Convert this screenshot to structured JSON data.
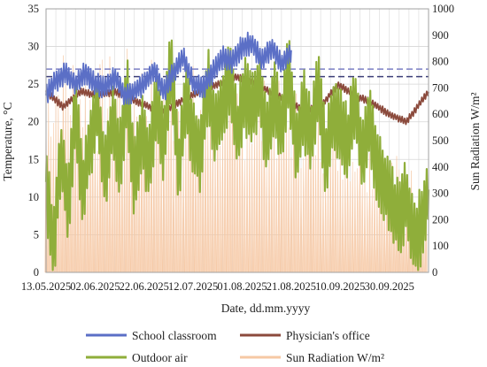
{
  "chart_data": {
    "type": "line",
    "title": "",
    "xlabel": "Date, dd.mm.yyyy",
    "ylabel": "Temperature, °C",
    "y2label": "Sun Radiation W/m²",
    "x_ticks": [
      "13.05.2025",
      "02.06.2025",
      "22.06.2025",
      "12.07.2025",
      "01.08.2025",
      "21.08.2025",
      "10.09.2025",
      "30.09.2025"
    ],
    "x_range": [
      "2025-05-13",
      "2025-10-16"
    ],
    "ylim": [
      0,
      35
    ],
    "y_ticks": [
      "0",
      "5",
      "10",
      "15",
      "20",
      "25",
      "30",
      "35"
    ],
    "y2lim": [
      0,
      1000
    ],
    "y2_ticks": [
      "0",
      "100",
      "200",
      "300",
      "400",
      "500",
      "600",
      "700",
      "800",
      "900",
      "1000"
    ],
    "grid": true,
    "legend_position": "bottom",
    "reference_lines": [
      {
        "value": 27,
        "color": "#7b7fc4",
        "style": "dashed"
      },
      {
        "value": 26,
        "color": "#3d3f78",
        "style": "dashed"
      }
    ],
    "series": [
      {
        "name": "School classroom",
        "color": "#5b6fc6",
        "axis": "left",
        "x": [
          "2025-05-13",
          "2025-05-17",
          "2025-05-21",
          "2025-05-25",
          "2025-05-29",
          "2025-06-02",
          "2025-06-06",
          "2025-06-10",
          "2025-06-14",
          "2025-06-18",
          "2025-06-22",
          "2025-06-26",
          "2025-06-30",
          "2025-07-04",
          "2025-07-08",
          "2025-07-12",
          "2025-07-16",
          "2025-07-20",
          "2025-07-24",
          "2025-07-28",
          "2025-08-01",
          "2025-08-05",
          "2025-08-09",
          "2025-08-13",
          "2025-08-17",
          "2025-08-21"
        ],
        "values": [
          23.5,
          25.5,
          26.5,
          25.0,
          26.5,
          25.0,
          24.5,
          26.0,
          23.5,
          24.0,
          25.0,
          27.0,
          24.0,
          26.5,
          28.5,
          25.0,
          24.5,
          26.5,
          28.5,
          28.0,
          30.0,
          30.5,
          28.0,
          30.0,
          27.5,
          29.5
        ]
      },
      {
        "name": "Physician's office",
        "color": "#8b4a3c",
        "axis": "left",
        "x": [
          "2025-05-13",
          "2025-05-20",
          "2025-05-27",
          "2025-06-03",
          "2025-06-10",
          "2025-06-17",
          "2025-06-24",
          "2025-07-01",
          "2025-07-08",
          "2025-07-15",
          "2025-07-22",
          "2025-07-29",
          "2025-08-05",
          "2025-08-12",
          "2025-08-19",
          "2025-08-26",
          "2025-09-02",
          "2025-09-09",
          "2025-09-16",
          "2025-09-23",
          "2025-09-30",
          "2025-10-07",
          "2025-10-16"
        ],
        "values": [
          24.0,
          22.0,
          24.0,
          23.5,
          24.0,
          23.0,
          22.0,
          21.5,
          23.0,
          24.0,
          25.0,
          26.0,
          25.5,
          24.0,
          23.0,
          21.5,
          22.0,
          25.0,
          23.5,
          22.5,
          21.0,
          20.0,
          24.0
        ]
      },
      {
        "name": "Outdoor air",
        "color": "#8fae3a",
        "axis": "left",
        "x": [
          "2025-05-13",
          "2025-05-16",
          "2025-05-19",
          "2025-05-22",
          "2025-05-25",
          "2025-05-28",
          "2025-05-31",
          "2025-06-03",
          "2025-06-06",
          "2025-06-09",
          "2025-06-12",
          "2025-06-15",
          "2025-06-18",
          "2025-06-21",
          "2025-06-24",
          "2025-06-27",
          "2025-06-30",
          "2025-07-03",
          "2025-07-06",
          "2025-07-09",
          "2025-07-12",
          "2025-07-15",
          "2025-07-18",
          "2025-07-21",
          "2025-07-24",
          "2025-07-27",
          "2025-07-30",
          "2025-08-02",
          "2025-08-05",
          "2025-08-08",
          "2025-08-11",
          "2025-08-14",
          "2025-08-17",
          "2025-08-20",
          "2025-08-23",
          "2025-08-26",
          "2025-08-29",
          "2025-09-01",
          "2025-09-04",
          "2025-09-07",
          "2025-09-10",
          "2025-09-13",
          "2025-09-16",
          "2025-09-19",
          "2025-09-22",
          "2025-09-25",
          "2025-09-28",
          "2025-10-01",
          "2025-10-04",
          "2025-10-07",
          "2025-10-10",
          "2025-10-13",
          "2025-10-16"
        ],
        "values": [
          12,
          3,
          16,
          9,
          21,
          11,
          17,
          22,
          13,
          20,
          15,
          24,
          12,
          19,
          14,
          22,
          17,
          28,
          13,
          23,
          18,
          16,
          25,
          19,
          22,
          26,
          18,
          24,
          21,
          25,
          17,
          23,
          19,
          27,
          16,
          22,
          18,
          24,
          15,
          21,
          19,
          17,
          23,
          15,
          20,
          14,
          12,
          9,
          7,
          10,
          4,
          6,
          11
        ]
      },
      {
        "name": "Sun Radiation W/m²",
        "color": "#f6c8a4",
        "axis": "right",
        "x": [
          "2025-05-13",
          "2025-05-23",
          "2025-06-02",
          "2025-06-12",
          "2025-06-22",
          "2025-07-02",
          "2025-07-12",
          "2025-07-22",
          "2025-08-01",
          "2025-08-11",
          "2025-08-21",
          "2025-08-31",
          "2025-09-10",
          "2025-09-20",
          "2025-09-30",
          "2025-10-10",
          "2025-10-16"
        ],
        "values": [
          850,
          880,
          800,
          860,
          840,
          820,
          800,
          790,
          760,
          740,
          720,
          680,
          620,
          560,
          480,
          400,
          350
        ]
      }
    ]
  }
}
